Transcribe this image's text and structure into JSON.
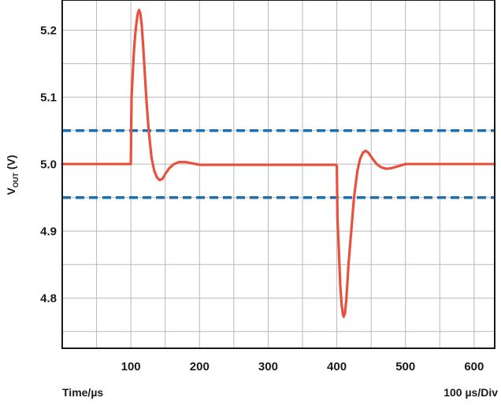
{
  "chart_data": {
    "type": "line",
    "title": "",
    "ylabel_main": "V",
    "ylabel_sub": "OUT",
    "ylabel_unit": " (V)",
    "xlabel": "Time/µs",
    "scale_note": "100 µs/Div",
    "xlim": [
      0,
      630
    ],
    "ylim": [
      4.725,
      5.245
    ],
    "x_ticks": [
      {
        "value": 100,
        "label": "100"
      },
      {
        "value": 200,
        "label": "200"
      },
      {
        "value": 300,
        "label": "300"
      },
      {
        "value": 400,
        "label": "400"
      },
      {
        "value": 500,
        "label": "500"
      },
      {
        "value": 600,
        "label": "600"
      }
    ],
    "y_ticks": [
      {
        "value": 5.2,
        "label": "5.2"
      },
      {
        "value": 5.1,
        "label": "5.1"
      },
      {
        "value": 5.0,
        "label": "5.0"
      },
      {
        "value": 4.9,
        "label": "4.9"
      },
      {
        "value": 4.8,
        "label": "4.8"
      }
    ],
    "grid": {
      "x_step": 50,
      "y_step": 0.05,
      "on": true
    },
    "thresholds": [
      {
        "value": 5.05,
        "color": "#1f6fb2",
        "style": "dashed"
      },
      {
        "value": 4.95,
        "color": "#1f6fb2",
        "style": "dashed"
      }
    ],
    "series": [
      {
        "color": "#e8513d",
        "points": [
          [
            0,
            5.0
          ],
          [
            98,
            5.0
          ],
          [
            99,
            5.0
          ],
          [
            100,
            5.0
          ],
          [
            101,
            5.1
          ],
          [
            102,
            5.12
          ],
          [
            104,
            5.16
          ],
          [
            106,
            5.19
          ],
          [
            108,
            5.21
          ],
          [
            110,
            5.225
          ],
          [
            112,
            5.23
          ],
          [
            114,
            5.224
          ],
          [
            116,
            5.205
          ],
          [
            118,
            5.175
          ],
          [
            120,
            5.14
          ],
          [
            123,
            5.09
          ],
          [
            126,
            5.05
          ],
          [
            130,
            5.01
          ],
          [
            134,
            4.99
          ],
          [
            138,
            4.98
          ],
          [
            142,
            4.976
          ],
          [
            146,
            4.978
          ],
          [
            150,
            4.985
          ],
          [
            156,
            4.994
          ],
          [
            163,
            5.0
          ],
          [
            170,
            5.003
          ],
          [
            180,
            5.003
          ],
          [
            190,
            5.001
          ],
          [
            200,
            4.999
          ],
          [
            220,
            4.999
          ],
          [
            300,
            4.999
          ],
          [
            399,
            4.999
          ],
          [
            400,
            4.997
          ],
          [
            401,
            4.92
          ],
          [
            403,
            4.87
          ],
          [
            405,
            4.82
          ],
          [
            407,
            4.79
          ],
          [
            409,
            4.775
          ],
          [
            410,
            4.772
          ],
          [
            412,
            4.778
          ],
          [
            414,
            4.8
          ],
          [
            417,
            4.85
          ],
          [
            421,
            4.9
          ],
          [
            425,
            4.95
          ],
          [
            430,
            4.99
          ],
          [
            434,
            5.008
          ],
          [
            438,
            5.017
          ],
          [
            442,
            5.02
          ],
          [
            446,
            5.017
          ],
          [
            452,
            5.008
          ],
          [
            458,
            5.0
          ],
          [
            465,
            4.995
          ],
          [
            472,
            4.993
          ],
          [
            480,
            4.994
          ],
          [
            490,
            4.997
          ],
          [
            500,
            5.0
          ],
          [
            520,
            5.0
          ],
          [
            630,
            5.0
          ]
        ]
      }
    ]
  }
}
